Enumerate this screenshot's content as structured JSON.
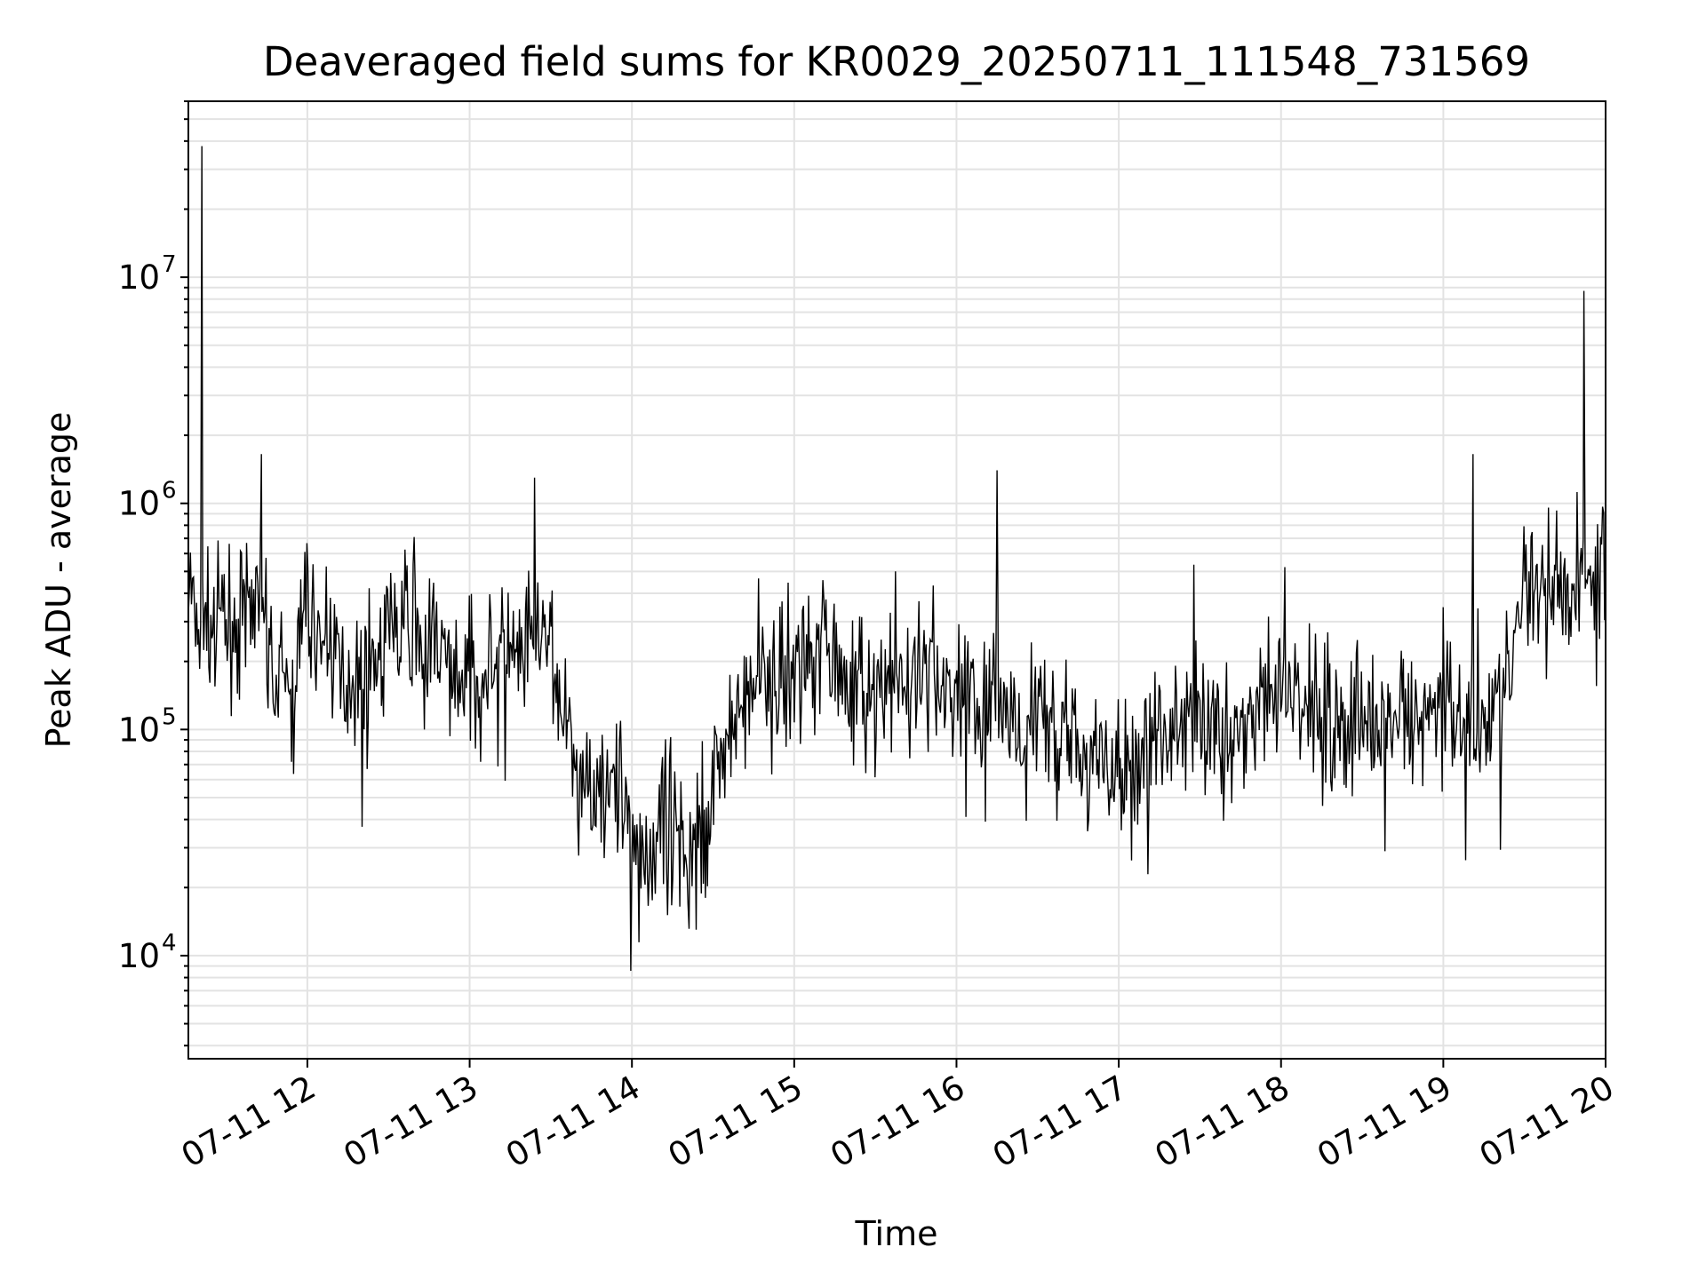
{
  "chart_data": {
    "type": "line",
    "title": "Deaveraged field sums for KR0029_20250711_111548_731569",
    "xlabel": "Time",
    "ylabel": "Peak ADU - average",
    "y_scale": "log",
    "ylim": [
      3500,
      60000000
    ],
    "xlim": [
      "2025-07-11T11:16",
      "2025-07-11T20:00"
    ],
    "grid": true,
    "line_color": "#000000",
    "x_ticks": [
      "07-11 12",
      "07-11 13",
      "07-11 14",
      "07-11 15",
      "07-11 16",
      "07-11 17",
      "07-11 18",
      "07-11 19",
      "07-11 20"
    ],
    "y_ticks": [
      {
        "base": "10",
        "exp": "4",
        "value": 10000
      },
      {
        "base": "10",
        "exp": "5",
        "value": 100000
      },
      {
        "base": "10",
        "exp": "6",
        "value": 1000000
      },
      {
        "base": "10",
        "exp": "7",
        "value": 10000000
      }
    ],
    "series": [
      {
        "x": [
          "2025-07-11T11:16",
          "2025-07-11T11:20",
          "2025-07-11T11:25",
          "2025-07-11T11:30",
          "2025-07-11T11:35",
          "2025-07-11T11:40",
          "2025-07-11T11:45",
          "2025-07-11T11:50",
          "2025-07-11T11:55",
          "2025-07-11T12:00",
          "2025-07-11T12:10",
          "2025-07-11T12:20",
          "2025-07-11T12:30",
          "2025-07-11T12:40",
          "2025-07-11T12:50",
          "2025-07-11T13:00",
          "2025-07-11T13:10",
          "2025-07-11T13:20",
          "2025-07-11T13:30",
          "2025-07-11T13:40",
          "2025-07-11T13:50",
          "2025-07-11T14:00",
          "2025-07-11T14:10",
          "2025-07-11T14:20",
          "2025-07-11T14:30",
          "2025-07-11T14:40",
          "2025-07-11T14:50",
          "2025-07-11T15:00",
          "2025-07-11T15:10",
          "2025-07-11T15:20",
          "2025-07-11T15:30",
          "2025-07-11T15:40",
          "2025-07-11T15:50",
          "2025-07-11T16:00",
          "2025-07-11T16:10",
          "2025-07-11T16:20",
          "2025-07-11T16:30",
          "2025-07-11T16:40",
          "2025-07-11T16:50",
          "2025-07-11T17:00",
          "2025-07-11T17:10",
          "2025-07-11T17:20",
          "2025-07-11T17:30",
          "2025-07-11T17:40",
          "2025-07-11T17:50",
          "2025-07-11T18:00",
          "2025-07-11T18:10",
          "2025-07-11T18:20",
          "2025-07-11T18:30",
          "2025-07-11T18:40",
          "2025-07-11T18:50",
          "2025-07-11T19:00",
          "2025-07-11T19:10",
          "2025-07-11T19:20",
          "2025-07-11T19:25",
          "2025-07-11T19:30",
          "2025-07-11T19:35",
          "2025-07-11T19:40",
          "2025-07-11T19:45",
          "2025-07-11T19:50",
          "2025-07-11T19:55",
          "2025-07-11T20:00"
        ],
        "y": [
          400000,
          300000,
          250000,
          280000,
          300000,
          350000,
          220000,
          160000,
          150000,
          330000,
          200000,
          160000,
          230000,
          300000,
          200000,
          170000,
          200000,
          200000,
          230000,
          55000,
          70000,
          32000,
          28000,
          25000,
          60000,
          130000,
          160000,
          180000,
          250000,
          170000,
          130000,
          150000,
          170000,
          140000,
          120000,
          120000,
          110000,
          90000,
          70000,
          60000,
          85000,
          100000,
          100000,
          90000,
          110000,
          150000,
          130000,
          110000,
          110000,
          110000,
          100000,
          130000,
          110000,
          130000,
          170000,
          400000,
          360000,
          450000,
          400000,
          480000,
          500000,
          480000
        ]
      }
    ],
    "spikes": [
      {
        "x": "2025-07-11T11:21",
        "y": 38000000
      },
      {
        "x": "2025-07-11T11:43",
        "y": 1650000
      },
      {
        "x": "2025-07-11T13:24",
        "y": 1300000
      },
      {
        "x": "2025-07-11T16:15",
        "y": 1400000
      },
      {
        "x": "2025-07-11T19:11",
        "y": 1650000
      },
      {
        "x": "2025-07-11T19:52",
        "y": 8700000
      }
    ]
  }
}
